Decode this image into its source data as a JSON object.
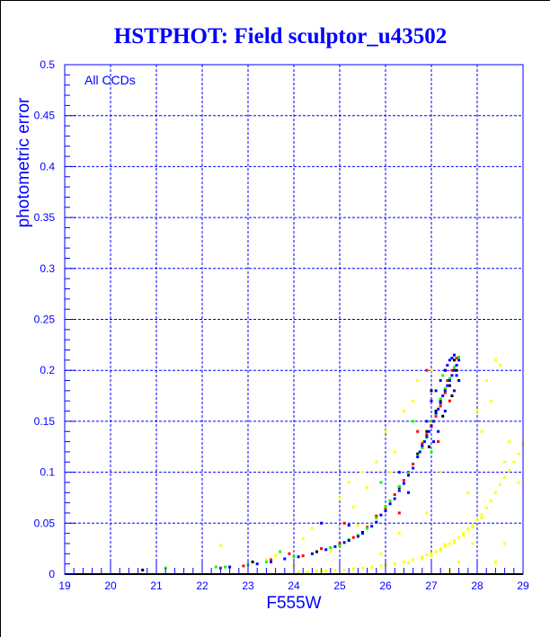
{
  "chart_data": {
    "type": "scatter",
    "title": "HSTPHOT: Field sculptor_u43502",
    "xlabel": "F555W",
    "ylabel": "photometric error",
    "annotation": "All CCDs",
    "xlim": [
      19,
      29
    ],
    "ylim": [
      0,
      0.5
    ],
    "xticks": [
      "19",
      "20",
      "21",
      "22",
      "23",
      "24",
      "25",
      "26",
      "27",
      "28",
      "29"
    ],
    "yticks": [
      "0",
      "0.05",
      "0.1",
      "0.15",
      "0.2",
      "0.25",
      "0.3",
      "0.35",
      "0.4",
      "0.45",
      "0.5"
    ],
    "grid": true,
    "colors": {
      "axis": "#0000ff",
      "grid": "#0000ff",
      "frame": "#000000"
    },
    "series": [
      {
        "name": "yellow",
        "color": "#ffff00",
        "points": [
          [
            24.1,
            0.002
          ],
          [
            24.3,
            0.002
          ],
          [
            24.5,
            0.003
          ],
          [
            24.7,
            0.003
          ],
          [
            24.9,
            0.004
          ],
          [
            25.1,
            0.004
          ],
          [
            25.3,
            0.005
          ],
          [
            25.5,
            0.006
          ],
          [
            25.7,
            0.007
          ],
          [
            25.9,
            0.008
          ],
          [
            26.0,
            0.009
          ],
          [
            26.2,
            0.01
          ],
          [
            26.4,
            0.012
          ],
          [
            26.6,
            0.014
          ],
          [
            26.8,
            0.017
          ],
          [
            27.0,
            0.02
          ],
          [
            27.1,
            0.022
          ],
          [
            27.2,
            0.025
          ],
          [
            27.3,
            0.027
          ],
          [
            27.4,
            0.03
          ],
          [
            27.5,
            0.033
          ],
          [
            27.6,
            0.036
          ],
          [
            27.7,
            0.04
          ],
          [
            27.8,
            0.044
          ],
          [
            27.9,
            0.048
          ],
          [
            28.0,
            0.053
          ],
          [
            28.1,
            0.058
          ],
          [
            28.2,
            0.065
          ],
          [
            28.3,
            0.072
          ],
          [
            28.4,
            0.08
          ],
          [
            28.5,
            0.088
          ],
          [
            28.6,
            0.095
          ],
          [
            28.7,
            0.102
          ],
          [
            28.8,
            0.11
          ],
          [
            28.9,
            0.118
          ],
          [
            29.0,
            0.128
          ],
          [
            26.5,
            0.011
          ],
          [
            26.9,
            0.019
          ],
          [
            27.2,
            0.023
          ],
          [
            27.5,
            0.031
          ],
          [
            27.7,
            0.038
          ],
          [
            27.9,
            0.046
          ],
          [
            28.1,
            0.055
          ],
          [
            26.8,
            0.015
          ],
          [
            27.0,
            0.018
          ],
          [
            27.3,
            0.029
          ],
          [
            22.4,
            0.028
          ],
          [
            23.4,
            0.014
          ],
          [
            23.6,
            0.018
          ],
          [
            24.0,
            0.008
          ],
          [
            24.2,
            0.035
          ],
          [
            24.6,
            0.003
          ],
          [
            24.8,
            0.022
          ],
          [
            25.0,
            0.075
          ],
          [
            25.2,
            0.09
          ],
          [
            25.5,
            0.1
          ],
          [
            25.8,
            0.11
          ],
          [
            25.4,
            0.048
          ],
          [
            26.0,
            0.14
          ],
          [
            26.2,
            0.12
          ],
          [
            26.4,
            0.16
          ],
          [
            26.6,
            0.17
          ],
          [
            26.7,
            0.19
          ],
          [
            26.8,
            0.13
          ],
          [
            27.0,
            0.2
          ],
          [
            27.4,
            0.003
          ],
          [
            27.6,
            0.012
          ],
          [
            27.9,
            0.03
          ],
          [
            28.1,
            0.14
          ],
          [
            28.3,
            0.17
          ],
          [
            28.4,
            0.21
          ],
          [
            28.5,
            0.205
          ],
          [
            28.2,
            0.19
          ],
          [
            28.0,
            0.16
          ],
          [
            28.4,
            0.012
          ],
          [
            28.6,
            0.11
          ],
          [
            28.7,
            0.13
          ],
          [
            28.9,
            0.09
          ],
          [
            28.6,
            0.03
          ],
          [
            25.6,
            0.085
          ],
          [
            26.1,
            0.1
          ],
          [
            25.3,
            0.066
          ],
          [
            24.4,
            0.045
          ],
          [
            27.2,
            0.1
          ],
          [
            26.9,
            0.06
          ],
          [
            27.8,
            0.08
          ],
          [
            26.3,
            0.04
          ],
          [
            25.9,
            0.02
          ]
        ]
      },
      {
        "name": "black",
        "color": "#000000",
        "points": [
          [
            20.7,
            0.004
          ],
          [
            23.1,
            0.012
          ],
          [
            23.5,
            0.014
          ],
          [
            24.5,
            0.022
          ],
          [
            25.5,
            0.041
          ],
          [
            26.0,
            0.066
          ],
          [
            26.3,
            0.085
          ],
          [
            26.7,
            0.118
          ],
          [
            26.9,
            0.14
          ],
          [
            27.1,
            0.16
          ],
          [
            27.2,
            0.17
          ],
          [
            27.3,
            0.2
          ],
          [
            27.4,
            0.185
          ],
          [
            27.5,
            0.21
          ],
          [
            27.55,
            0.2
          ],
          [
            27.0,
            0.18
          ],
          [
            27.6,
            0.19
          ],
          [
            26.95,
            0.125
          ],
          [
            27.25,
            0.155
          ],
          [
            27.45,
            0.175
          ]
        ]
      },
      {
        "name": "red",
        "color": "#ff0000",
        "points": [
          [
            22.4,
            0.006
          ],
          [
            22.9,
            0.008
          ],
          [
            23.5,
            0.014
          ],
          [
            23.9,
            0.02
          ],
          [
            24.2,
            0.018
          ],
          [
            24.6,
            0.025
          ],
          [
            25.0,
            0.03
          ],
          [
            25.3,
            0.036
          ],
          [
            25.1,
            0.05
          ],
          [
            25.6,
            0.046
          ],
          [
            25.8,
            0.057
          ],
          [
            26.0,
            0.064
          ],
          [
            26.2,
            0.078
          ],
          [
            26.4,
            0.092
          ],
          [
            26.5,
            0.1
          ],
          [
            26.6,
            0.108
          ],
          [
            26.8,
            0.128
          ],
          [
            26.9,
            0.137
          ],
          [
            27.0,
            0.146
          ],
          [
            27.1,
            0.155
          ],
          [
            27.2,
            0.165
          ],
          [
            27.3,
            0.178
          ],
          [
            27.35,
            0.19
          ],
          [
            27.45,
            0.2
          ],
          [
            27.55,
            0.212
          ],
          [
            26.9,
            0.2
          ],
          [
            26.7,
            0.14
          ],
          [
            27.15,
            0.13
          ],
          [
            27.4,
            0.17
          ],
          [
            26.3,
            0.06
          ]
        ]
      },
      {
        "name": "green",
        "color": "#00ff00",
        "points": [
          [
            21.2,
            0.006
          ],
          [
            22.3,
            0.007
          ],
          [
            22.5,
            0.007
          ],
          [
            23.0,
            0.009
          ],
          [
            23.4,
            0.012
          ],
          [
            23.7,
            0.022
          ],
          [
            24.0,
            0.017
          ],
          [
            24.4,
            0.02
          ],
          [
            24.8,
            0.026
          ],
          [
            25.0,
            0.028
          ],
          [
            25.2,
            0.034
          ],
          [
            25.4,
            0.038
          ],
          [
            25.6,
            0.045
          ],
          [
            25.8,
            0.055
          ],
          [
            26.0,
            0.066
          ],
          [
            26.1,
            0.072
          ],
          [
            26.3,
            0.086
          ],
          [
            26.5,
            0.099
          ],
          [
            26.7,
            0.116
          ],
          [
            26.8,
            0.124
          ],
          [
            26.9,
            0.134
          ],
          [
            27.0,
            0.15
          ],
          [
            27.1,
            0.157
          ],
          [
            27.2,
            0.172
          ],
          [
            27.3,
            0.182
          ],
          [
            27.4,
            0.192
          ],
          [
            27.5,
            0.203
          ],
          [
            27.6,
            0.213
          ],
          [
            26.6,
            0.15
          ],
          [
            27.0,
            0.12
          ],
          [
            27.25,
            0.195
          ],
          [
            25.9,
            0.09
          ]
        ]
      },
      {
        "name": "blue",
        "color": "#0000ff",
        "points": [
          [
            22.6,
            0.007
          ],
          [
            23.2,
            0.01
          ],
          [
            23.5,
            0.012
          ],
          [
            23.8,
            0.015
          ],
          [
            24.1,
            0.017
          ],
          [
            24.4,
            0.02
          ],
          [
            24.7,
            0.024
          ],
          [
            24.9,
            0.027
          ],
          [
            25.1,
            0.031
          ],
          [
            25.2,
            0.033
          ],
          [
            25.4,
            0.037
          ],
          [
            25.5,
            0.04
          ],
          [
            25.7,
            0.047
          ],
          [
            25.8,
            0.051
          ],
          [
            25.9,
            0.058
          ],
          [
            26.0,
            0.062
          ],
          [
            26.1,
            0.069
          ],
          [
            26.2,
            0.074
          ],
          [
            26.3,
            0.082
          ],
          [
            26.4,
            0.089
          ],
          [
            26.5,
            0.097
          ],
          [
            26.6,
            0.104
          ],
          [
            26.7,
            0.115
          ],
          [
            26.75,
            0.12
          ],
          [
            26.8,
            0.126
          ],
          [
            26.85,
            0.13
          ],
          [
            26.9,
            0.135
          ],
          [
            26.95,
            0.14
          ],
          [
            27.0,
            0.145
          ],
          [
            27.05,
            0.15
          ],
          [
            27.1,
            0.158
          ],
          [
            27.15,
            0.162
          ],
          [
            27.2,
            0.168
          ],
          [
            27.25,
            0.175
          ],
          [
            27.3,
            0.18
          ],
          [
            27.35,
            0.185
          ],
          [
            27.4,
            0.19
          ],
          [
            27.45,
            0.195
          ],
          [
            27.5,
            0.2
          ],
          [
            27.55,
            0.205
          ],
          [
            27.6,
            0.21
          ],
          [
            27.3,
            0.2
          ],
          [
            27.4,
            0.21
          ],
          [
            27.5,
            0.215
          ],
          [
            27.2,
            0.19
          ],
          [
            27.15,
            0.14
          ],
          [
            26.9,
            0.15
          ],
          [
            27.0,
            0.17
          ],
          [
            27.1,
            0.18
          ],
          [
            27.6,
            0.19
          ],
          [
            27.5,
            0.18
          ],
          [
            27.3,
            0.16
          ],
          [
            24.6,
            0.05
          ],
          [
            25.2,
            0.048
          ],
          [
            26.3,
            0.1
          ],
          [
            26.5,
            0.08
          ],
          [
            27.45,
            0.212
          ],
          [
            27.35,
            0.205
          ],
          [
            27.55,
            0.195
          ],
          [
            27.05,
            0.13
          ]
        ]
      }
    ]
  }
}
